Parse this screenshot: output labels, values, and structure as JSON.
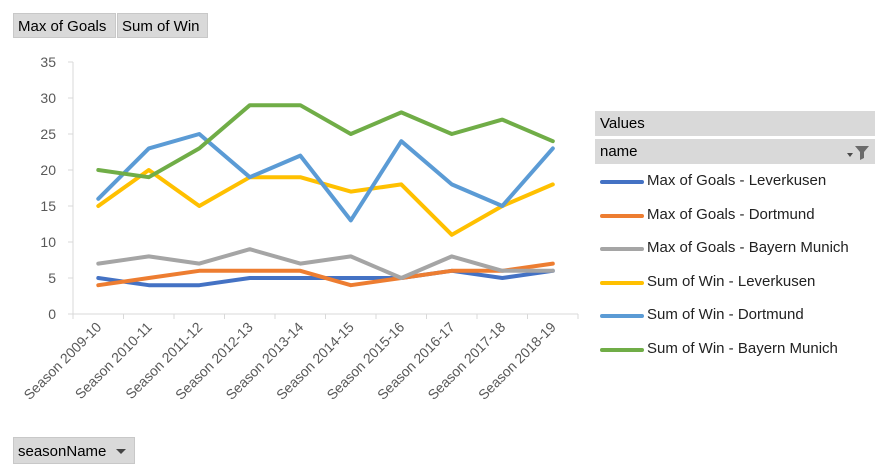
{
  "buttons": {
    "goals_label": "Max of Goals",
    "win_label": "Sum of Win"
  },
  "legend": {
    "header": "Values",
    "field": "name"
  },
  "row_field": {
    "label": "seasonName"
  },
  "chart_data": {
    "type": "line",
    "categories": [
      "Season 2009-10",
      "Season 2010-11",
      "Season 2011-12",
      "Season 2012-13",
      "Season 2013-14",
      "Season 2014-15",
      "Season 2015-16",
      "Season 2016-17",
      "Season 2017-18",
      "Season 2018-19"
    ],
    "ylim": [
      0,
      35
    ],
    "yticks": [
      0,
      5,
      10,
      15,
      20,
      25,
      30,
      35
    ],
    "grid": false,
    "legend_position": "right",
    "series": [
      {
        "name": "Max of Goals - Leverkusen",
        "color": "#4472c4",
        "values": [
          5,
          4,
          4,
          5,
          5,
          5,
          5,
          6,
          5,
          6
        ]
      },
      {
        "name": "Max of Goals - Dortmund",
        "color": "#ed7d31",
        "values": [
          4,
          5,
          6,
          6,
          6,
          4,
          5,
          6,
          6,
          7
        ]
      },
      {
        "name": "Max of Goals - Bayern Munich",
        "color": "#a5a5a5",
        "values": [
          7,
          8,
          7,
          9,
          7,
          8,
          5,
          8,
          6,
          6
        ]
      },
      {
        "name": "Sum of Win - Leverkusen",
        "color": "#ffc000",
        "values": [
          15,
          20,
          15,
          19,
          19,
          17,
          18,
          11,
          15,
          18
        ]
      },
      {
        "name": "Sum of Win - Dortmund",
        "color": "#5b9bd5",
        "values": [
          16,
          23,
          25,
          19,
          22,
          13,
          24,
          18,
          15,
          23
        ]
      },
      {
        "name": "Sum of Win - Bayern Munich",
        "color": "#70ad47",
        "values": [
          20,
          19,
          23,
          29,
          29,
          25,
          28,
          25,
          27,
          24
        ]
      }
    ]
  }
}
